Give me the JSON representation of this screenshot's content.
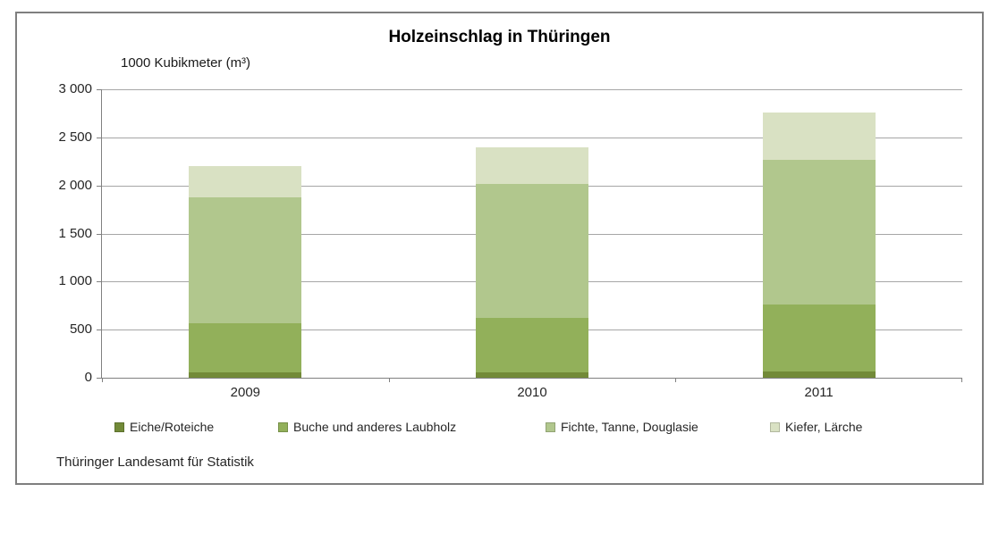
{
  "window": {
    "background_color": "#ffffff",
    "frame_border_color": "#7f7f7f"
  },
  "chart": {
    "title": "Holzeinschlag in Thüringen",
    "unit_label": "1000 Kubikmeter (m³)",
    "source_note": "Thüringer Landesamt für Statistik",
    "y_tick_labels": [
      "0",
      "500",
      "1 000",
      "1 500",
      "2 000",
      "2 500",
      "3 000"
    ]
  },
  "chart_data": {
    "type": "bar",
    "stacked": true,
    "title": "Holzeinschlag in Thüringen",
    "xlabel": "",
    "ylabel": "1000 Kubikmeter (m³)",
    "categories": [
      "2009",
      "2010",
      "2011"
    ],
    "series": [
      {
        "name": "Eiche/Roteiche",
        "color": "#728a38",
        "values": [
          60,
          60,
          65
        ]
      },
      {
        "name": "Buche und anderes Laubholz",
        "color": "#92b05a",
        "values": [
          510,
          560,
          695
        ]
      },
      {
        "name": "Fichte, Tanne, Douglasie",
        "color": "#b1c78d",
        "values": [
          1310,
          1400,
          1510
        ]
      },
      {
        "name": "Kiefer, Lärche",
        "color": "#d9e1c3",
        "values": [
          320,
          380,
          490
        ]
      }
    ],
    "stack_totals": [
      2200,
      2400,
      2760
    ],
    "ylim": [
      0,
      3000
    ],
    "ytick_step": 500,
    "grid": true,
    "legend_position": "bottom",
    "axis_color": "#808080",
    "grid_color": "#a6a6a6"
  }
}
